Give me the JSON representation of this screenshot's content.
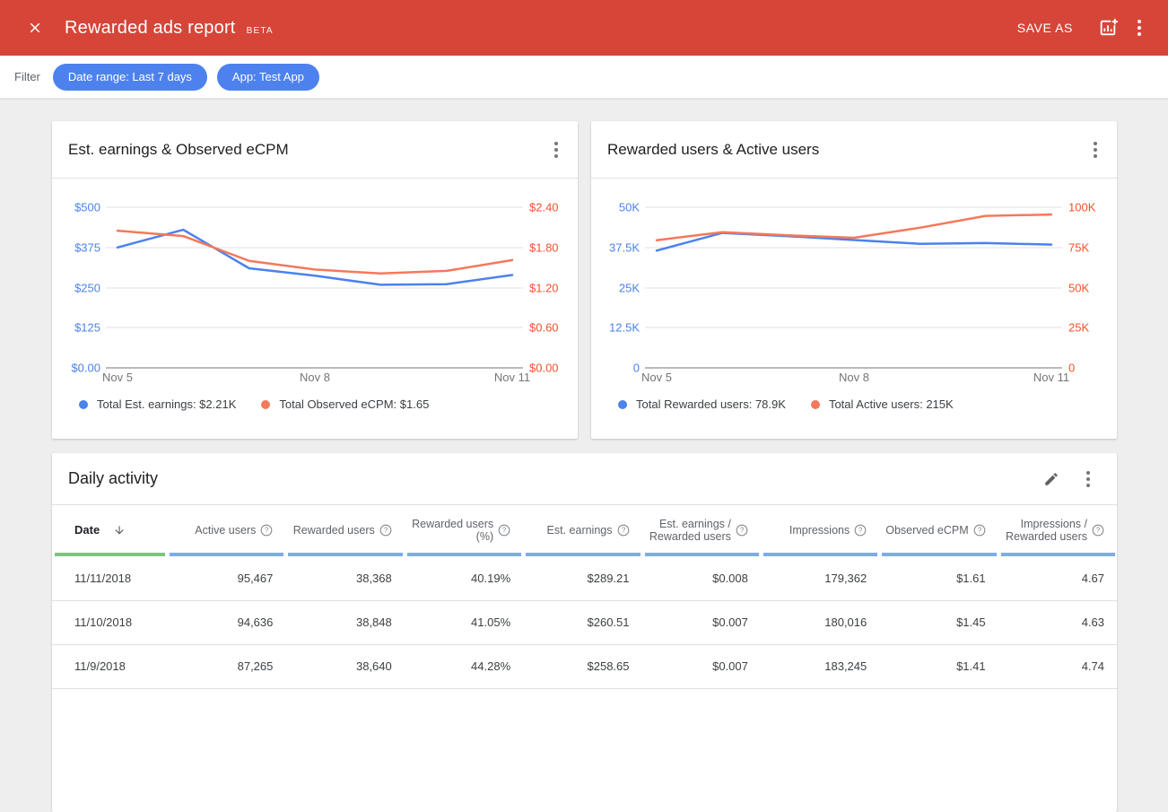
{
  "header": {
    "title": "Rewarded ads report",
    "beta": "BETA",
    "save_as": "SAVE AS"
  },
  "filter_bar": {
    "label": "Filter",
    "chips": [
      {
        "label": "Date range: Last 7 days"
      },
      {
        "label": "App: Test App"
      }
    ]
  },
  "colors": {
    "header_red": "#d64538",
    "chip_blue": "#4d82ee",
    "series_blue": "#4a82ee",
    "series_coral": "#f4795b",
    "axis_right_orange": "#f4512e",
    "gridline": "#e0e0e0",
    "axis_line": "#757575",
    "bar_green": "#7dc57f",
    "bar_blue": "#7faaf0"
  },
  "charts": [
    {
      "title": "Est. earnings & Observed eCPM",
      "type": "line",
      "left_axis": {
        "max": 500,
        "ticks": [
          "$500",
          "$375",
          "$250",
          "$125",
          "$0.00"
        ],
        "color": "#4a82ee"
      },
      "right_axis": {
        "max": 2.4,
        "ticks": [
          "$2.40",
          "$1.80",
          "$1.20",
          "$0.60",
          "$0.00"
        ],
        "color": "#f4512e"
      },
      "x_labels": [
        {
          "text": "Nov 5",
          "i": 0
        },
        {
          "text": "Nov 8",
          "i": 3
        },
        {
          "text": "Nov 11",
          "i": 6
        }
      ],
      "series": [
        {
          "name": "est-earnings",
          "legend": "Total Est. earnings: $2.21K",
          "axis": "left",
          "color": "#4a82ee",
          "values": [
            375,
            430,
            310,
            287,
            258.65,
            260.51,
            289.21
          ]
        },
        {
          "name": "observed-ecpm",
          "legend": "Total Observed eCPM: $1.65",
          "axis": "right",
          "color": "#f4795b",
          "values": [
            2.05,
            1.97,
            1.6,
            1.47,
            1.41,
            1.45,
            1.61
          ]
        }
      ]
    },
    {
      "title": "Rewarded users & Active users",
      "type": "line",
      "left_axis": {
        "max": 50000,
        "ticks": [
          "50K",
          "37.5K",
          "25K",
          "12.5K",
          "0"
        ],
        "color": "#4a82ee"
      },
      "right_axis": {
        "max": 100000,
        "ticks": [
          "100K",
          "75K",
          "50K",
          "25K",
          "0"
        ],
        "color": "#f4512e"
      },
      "x_labels": [
        {
          "text": "Nov 5",
          "i": 0
        },
        {
          "text": "Nov 8",
          "i": 3
        },
        {
          "text": "Nov 11",
          "i": 6
        }
      ],
      "series": [
        {
          "name": "rewarded-users",
          "legend": "Total Rewarded users: 78.9K",
          "axis": "left",
          "color": "#4a82ee",
          "values": [
            36500,
            42000,
            41000,
            39800,
            38640,
            38848,
            38368
          ]
        },
        {
          "name": "active-users",
          "legend": "Total Active users: 215K",
          "axis": "right",
          "color": "#f4795b",
          "values": [
            79500,
            84500,
            82500,
            81000,
            87265,
            94636,
            95467
          ]
        }
      ]
    }
  ],
  "table": {
    "title": "Daily activity",
    "columns": [
      {
        "label": "Date",
        "sort": "desc",
        "bar": "#7dc57f"
      },
      {
        "label": "Active users",
        "help": true,
        "bar": "#7faaf0"
      },
      {
        "label": "Rewarded users",
        "help": true,
        "bar": "#7faaf0"
      },
      {
        "label": "Rewarded users (%)",
        "help": true,
        "bar": "#7faaf0"
      },
      {
        "label": "Est. earnings",
        "help": true,
        "bar": "#7faaf0"
      },
      {
        "label": "Est. earnings / Rewarded users",
        "help": true,
        "bar": "#7faaf0"
      },
      {
        "label": "Impressions",
        "help": true,
        "bar": "#7faaf0"
      },
      {
        "label": "Observed eCPM",
        "help": true,
        "bar": "#7faaf0"
      },
      {
        "label": "Impressions / Rewarded users",
        "help": true,
        "bar": "#7faaf0"
      }
    ],
    "rows": [
      [
        "11/11/2018",
        "95,467",
        "38,368",
        "40.19%",
        "$289.21",
        "$0.008",
        "179,362",
        "$1.61",
        "4.67"
      ],
      [
        "11/10/2018",
        "94,636",
        "38,848",
        "41.05%",
        "$260.51",
        "$0.007",
        "180,016",
        "$1.45",
        "4.63"
      ],
      [
        "11/9/2018",
        "87,265",
        "38,640",
        "44.28%",
        "$258.65",
        "$0.007",
        "183,245",
        "$1.41",
        "4.74"
      ]
    ]
  }
}
